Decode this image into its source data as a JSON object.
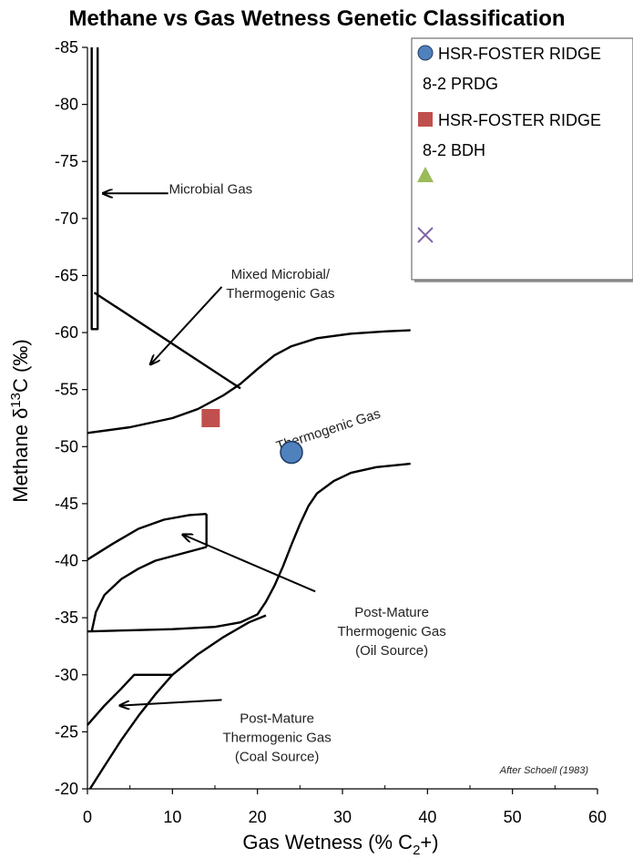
{
  "chart_data": {
    "type": "scatter",
    "title": "Methane vs Gas Wetness Genetic Classification",
    "xlabel": "Gas Wetness (% C",
    "xlabel_sub": "2",
    "xlabel_tail": "+)",
    "ylabel": "Methane  δ",
    "ylabel_sup": "13",
    "ylabel_tail": "C (‰)",
    "xlim": [
      0,
      60
    ],
    "ylim": [
      -20,
      -85
    ],
    "x_ticks": [
      0,
      10,
      20,
      30,
      40,
      50,
      60
    ],
    "y_ticks": [
      -85,
      -80,
      -75,
      -70,
      -65,
      -60,
      -55,
      -50,
      -45,
      -40,
      -35,
      -30,
      -25,
      -20
    ],
    "series": [
      {
        "name": "HSR-FOSTER RIDGE 8-2 PRDG",
        "legend_lines": [
          "HSR-FOSTER RIDGE",
          "8-2 PRDG"
        ],
        "marker": "circle",
        "color": "#4F81BD",
        "points": [
          {
            "x": 24,
            "y": -49.5
          }
        ]
      },
      {
        "name": "HSR-FOSTER RIDGE 8-2 BDH",
        "legend_lines": [
          "HSR-FOSTER RIDGE",
          "8-2 BDH"
        ],
        "marker": "square",
        "color": "#C0504D",
        "points": [
          {
            "x": 14.5,
            "y": -52.5
          }
        ]
      },
      {
        "name": "",
        "legend_lines": [],
        "marker": "triangle",
        "color": "#9BBB59",
        "points": []
      },
      {
        "name": "",
        "legend_lines": [],
        "marker": "x",
        "color": "#8064A2",
        "points": []
      }
    ],
    "boundaries": {
      "microbial_box": [
        [
          0.5,
          -85
        ],
        [
          0.5,
          -60.3
        ],
        [
          1.2,
          -60.3
        ],
        [
          1.2,
          -85
        ]
      ],
      "thermo_upper": [
        [
          0,
          -51.2
        ],
        [
          5,
          -51.7
        ],
        [
          10,
          -52.5
        ],
        [
          13,
          -53.3
        ],
        [
          16,
          -54.5
        ],
        [
          18,
          -55.5
        ],
        [
          20,
          -56.8
        ],
        [
          22,
          -58
        ],
        [
          24,
          -58.8
        ],
        [
          27,
          -59.5
        ],
        [
          31,
          -59.9
        ],
        [
          35,
          -60.1
        ],
        [
          38,
          -60.2
        ]
      ],
      "mixed_diagonal": [
        [
          0.8,
          -63.5
        ],
        [
          18,
          -55.1
        ]
      ],
      "thermo_lower": [
        [
          0,
          -33.8
        ],
        [
          5,
          -33.9
        ],
        [
          10,
          -34
        ],
        [
          15,
          -34.2
        ],
        [
          18,
          -34.6
        ],
        [
          20,
          -35.3
        ],
        [
          21,
          -36.4
        ],
        [
          22,
          -37.8
        ],
        [
          23,
          -39.5
        ],
        [
          24,
          -41.4
        ],
        [
          25,
          -43.2
        ],
        [
          26,
          -44.8
        ],
        [
          27,
          -45.9
        ],
        [
          29,
          -47
        ],
        [
          31,
          -47.7
        ],
        [
          34,
          -48.2
        ],
        [
          38,
          -48.5
        ]
      ],
      "oil_upper": [
        [
          0,
          -40.1
        ],
        [
          3,
          -41.5
        ],
        [
          6,
          -42.8
        ],
        [
          9,
          -43.6
        ],
        [
          12,
          -44
        ],
        [
          14,
          -44.1
        ]
      ],
      "oil_right": [
        [
          14,
          -44.1
        ],
        [
          14,
          -41.2
        ]
      ],
      "oil_lower": [
        [
          0.5,
          -33.8
        ],
        [
          1,
          -35.5
        ],
        [
          2,
          -37
        ],
        [
          4,
          -38.4
        ],
        [
          6,
          -39.3
        ],
        [
          8,
          -40
        ],
        [
          11,
          -40.6
        ],
        [
          14,
          -41.2
        ]
      ],
      "coal_upper": [
        [
          0,
          -25.6
        ],
        [
          2,
          -27.3
        ],
        [
          4,
          -28.8
        ],
        [
          5.5,
          -30
        ],
        [
          10,
          -30
        ]
      ],
      "coal_lower": [
        [
          0.3,
          -20
        ],
        [
          2,
          -22
        ],
        [
          4,
          -24.3
        ],
        [
          6,
          -26.4
        ],
        [
          8,
          -28.3
        ],
        [
          10,
          -30
        ],
        [
          13,
          -31.8
        ],
        [
          16,
          -33.3
        ],
        [
          19,
          -34.6
        ],
        [
          21,
          -35.2
        ]
      ]
    },
    "annotations": [
      {
        "lines": [
          "Microbial Gas"
        ],
        "x": 14.5,
        "y": -72.2,
        "anchor": "middle"
      },
      {
        "lines": [
          "Mixed Microbial/",
          "Thermogenic Gas"
        ],
        "x": 22.7,
        "y": -64.7,
        "anchor": "middle"
      },
      {
        "lines": [
          "Thermogenic Gas"
        ],
        "x": 28.5,
        "y": -51.1,
        "anchor": "middle",
        "rotate": -18
      },
      {
        "lines": [
          "Post-Mature",
          "Thermogenic Gas",
          "(Oil Source)"
        ],
        "x": 35.8,
        "y": -35.1,
        "anchor": "middle"
      },
      {
        "lines": [
          "Post-Mature",
          "Thermogenic Gas",
          "(Coal Source)"
        ],
        "x": 22.3,
        "y": -25.8,
        "anchor": "middle"
      }
    ],
    "arrows": [
      {
        "from": [
          9.5,
          -72.2
        ],
        "to": [
          1.8,
          -72.2
        ]
      },
      {
        "from": [
          15.8,
          -64
        ],
        "to": [
          7.4,
          -57.2
        ]
      },
      {
        "from": [
          26.8,
          -37.3
        ],
        "to": [
          11.2,
          -42.3
        ]
      },
      {
        "from": [
          15.8,
          -27.8
        ],
        "to": [
          3.8,
          -27.3
        ]
      }
    ],
    "credit": "After Schoell (1983)",
    "grid": false,
    "legend_position": "top-right"
  }
}
